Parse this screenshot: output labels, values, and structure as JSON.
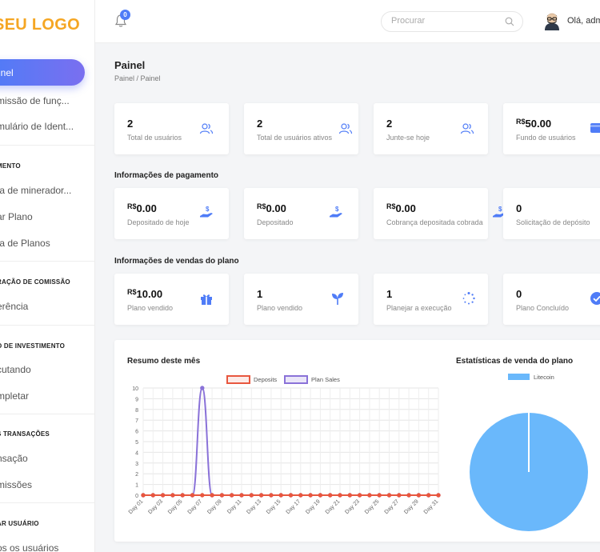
{
  "sidebar": {
    "logo": "SEU LOGO",
    "active_item": "inel",
    "items": [
      {
        "label": "missão de funç..."
      },
      {
        "label": "mulário de Ident..."
      },
      {
        "label": "ta de minerador..."
      },
      {
        "label": "ar Plano"
      },
      {
        "label": "ta de Planos"
      },
      {
        "label": "erência"
      },
      {
        "label": "cutando"
      },
      {
        "label": "mpletar"
      },
      {
        "label": "nsação"
      },
      {
        "label": "missões"
      },
      {
        "label": "os os usuários"
      }
    ],
    "headers": [
      {
        "label": "MENTO"
      },
      {
        "label": "RAÇÃO DE COMISSÃO"
      },
      {
        "label": "O DE INVESTIMENTO"
      },
      {
        "label": "S TRANSAÇÕES"
      },
      {
        "label": "AR USUÁRIO"
      }
    ]
  },
  "topbar": {
    "notification_count": "0",
    "search_placeholder": "Procurar",
    "greeting": "Olá, adm"
  },
  "page": {
    "title": "Painel",
    "breadcrumb": "Painel  /  Painel"
  },
  "stats": [
    {
      "currency": "",
      "value": "2",
      "label": "Total de usuários",
      "icon": "users-icon"
    },
    {
      "currency": "",
      "value": "2",
      "label": "Total de usuários ativos",
      "icon": "users-icon"
    },
    {
      "currency": "",
      "value": "2",
      "label": "Junte-se hoje",
      "icon": "users-icon"
    },
    {
      "currency": "R$",
      "value": "50.00",
      "label": "Fundo de usuários",
      "icon": "wallet-icon"
    }
  ],
  "payment_section": {
    "title": "Informações de pagamento",
    "cards": [
      {
        "currency": "R$",
        "value": "0.00",
        "label": "Depositado de hoje",
        "icon": "hand-money-icon"
      },
      {
        "currency": "R$",
        "value": "0.00",
        "label": "Depositado",
        "icon": "hand-money-icon"
      },
      {
        "currency": "R$",
        "value": "0.00",
        "label": "Cobrança depositada cobrada",
        "icon": "hand-money-icon"
      },
      {
        "currency": "",
        "value": "0",
        "label": "Solicitação de depósito",
        "icon": "hand-money-icon"
      }
    ]
  },
  "plan_section": {
    "title": "Informações de vendas do plano",
    "cards": [
      {
        "currency": "R$",
        "value": "10.00",
        "label": "Plano vendido",
        "icon": "gift-icon"
      },
      {
        "currency": "",
        "value": "1",
        "label": "Plano vendido",
        "icon": "sprout-icon"
      },
      {
        "currency": "",
        "value": "1",
        "label": "Planejar a execução",
        "icon": "spinner-icon"
      },
      {
        "currency": "",
        "value": "0",
        "label": "Plano Concluído",
        "icon": "check-circle-icon"
      }
    ]
  },
  "colors": {
    "accent": "#4f7cf7",
    "deposits": "#e8573f",
    "plan_sales": "#8a72d8",
    "pie": "#6ab8fb",
    "logo": "#f5a623"
  },
  "chart_data": [
    {
      "type": "line",
      "title": "Resumo deste mês",
      "categories": [
        "Day 01",
        "Day 02",
        "Day 03",
        "Day 04",
        "Day 05",
        "Day 06",
        "Day 07",
        "Day 08",
        "Day 09",
        "Day 10",
        "Day 11",
        "Day 12",
        "Day 13",
        "Day 14",
        "Day 15",
        "Day 16",
        "Day 17",
        "Day 18",
        "Day 19",
        "Day 20",
        "Day 21",
        "Day 22",
        "Day 23",
        "Day 24",
        "Day 25",
        "Day 26",
        "Day 27",
        "Day 28",
        "Day 29",
        "Day 30",
        "Day 31"
      ],
      "tick_labels": [
        "Day 01",
        "Day 03",
        "Day 05",
        "Day 07",
        "Day 09",
        "Day 11",
        "Day 13",
        "Day 15",
        "Day 17",
        "Day 19",
        "Day 21",
        "Day 23",
        "Day 25",
        "Day 27",
        "Day 29",
        "Day 31"
      ],
      "series": [
        {
          "name": "Deposits",
          "values": [
            0,
            0,
            0,
            0,
            0,
            0,
            0,
            0,
            0,
            0,
            0,
            0,
            0,
            0,
            0,
            0,
            0,
            0,
            0,
            0,
            0,
            0,
            0,
            0,
            0,
            0,
            0,
            0,
            0,
            0,
            0
          ]
        },
        {
          "name": "Plan Sales",
          "values": [
            0,
            0,
            0,
            0,
            0,
            0,
            10,
            0,
            0,
            0,
            0,
            0,
            0,
            0,
            0,
            0,
            0,
            0,
            0,
            0,
            0,
            0,
            0,
            0,
            0,
            0,
            0,
            0,
            0,
            0,
            0
          ]
        }
      ],
      "ylim": [
        0,
        10
      ],
      "yticks": [
        0,
        1,
        2,
        3,
        4,
        5,
        6,
        7,
        8,
        9,
        10
      ],
      "legend": "top",
      "grid": true
    },
    {
      "type": "pie",
      "title": "Estatísticas de venda do plano",
      "slices": [
        {
          "label": "Litecoin",
          "value": 1
        }
      ],
      "legend": "top"
    }
  ]
}
